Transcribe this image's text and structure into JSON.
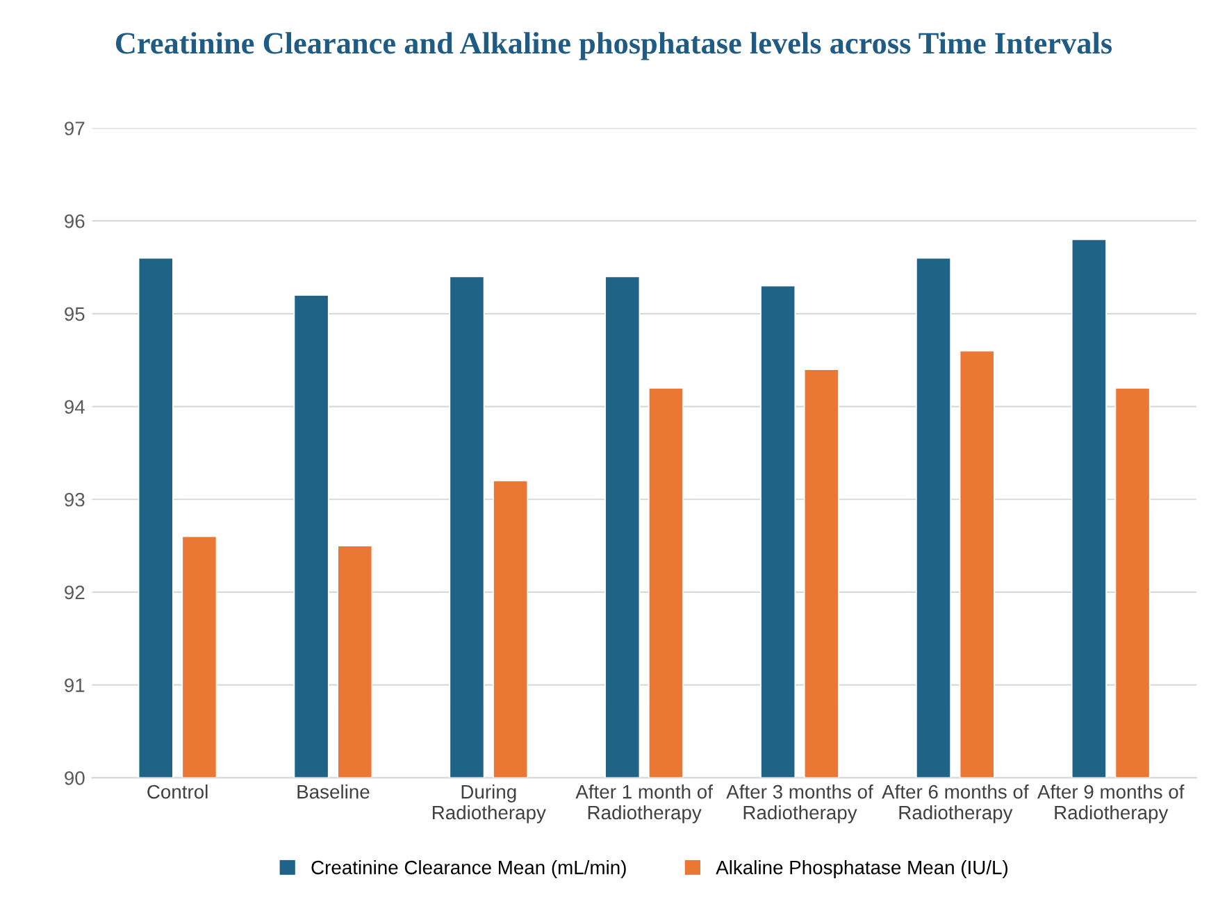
{
  "chart_data": {
    "type": "bar",
    "title": "Creatinine Clearance and Alkaline phosphatase levels across Time Intervals",
    "categories": [
      "Control",
      "Baseline",
      "During\nRadiotherapy",
      "After 1 month of\nRadiotherapy",
      "After 3 months of\nRadiotherapy",
      "After 6 months of\nRadiotherapy",
      "After 9 months of\nRadiotherapy"
    ],
    "series": [
      {
        "name": "Creatinine Clearance Mean (mL/min)",
        "color": "#1f6386",
        "values": [
          95.6,
          95.2,
          95.4,
          95.4,
          95.3,
          95.6,
          95.8
        ]
      },
      {
        "name": "Alkaline Phosphatase Mean (IU/L)",
        "color": "#eb7734",
        "values": [
          92.6,
          92.5,
          93.2,
          94.2,
          94.4,
          94.6,
          94.2
        ]
      }
    ],
    "ylim": [
      90,
      97
    ],
    "yticks": [
      90,
      91,
      92,
      93,
      94,
      95,
      96,
      97
    ],
    "grid": "y",
    "legend": "bottom"
  }
}
